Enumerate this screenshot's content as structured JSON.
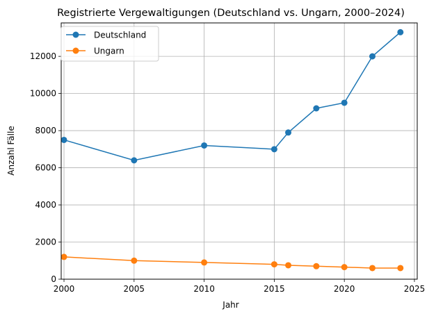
{
  "chart_data": {
    "type": "line",
    "title": "Registrierte Vergewaltigungen (Deutschland vs. Ungarn, 2000–2024)",
    "xlabel": "Jahr",
    "ylabel": "Anzahl Fälle",
    "xlim": [
      1999.8,
      2025.2
    ],
    "ylim": [
      0,
      13800
    ],
    "xticks": [
      2000,
      2005,
      2010,
      2015,
      2020,
      2025
    ],
    "yticks": [
      0,
      2000,
      4000,
      6000,
      8000,
      10000,
      12000
    ],
    "grid": true,
    "legend_position": "top-left",
    "series": [
      {
        "name": "Deutschland",
        "color": "#1f77b4",
        "marker": "circle",
        "x": [
          2000,
          2005,
          2010,
          2015,
          2016,
          2018,
          2020,
          2022,
          2024
        ],
        "y": [
          7500,
          6400,
          7200,
          7000,
          7900,
          9200,
          9500,
          12000,
          13300
        ]
      },
      {
        "name": "Ungarn",
        "color": "#ff7f0e",
        "marker": "circle",
        "x": [
          2000,
          2005,
          2010,
          2015,
          2016,
          2018,
          2020,
          2022,
          2024
        ],
        "y": [
          1200,
          1000,
          900,
          800,
          750,
          700,
          650,
          600,
          600
        ]
      }
    ]
  }
}
